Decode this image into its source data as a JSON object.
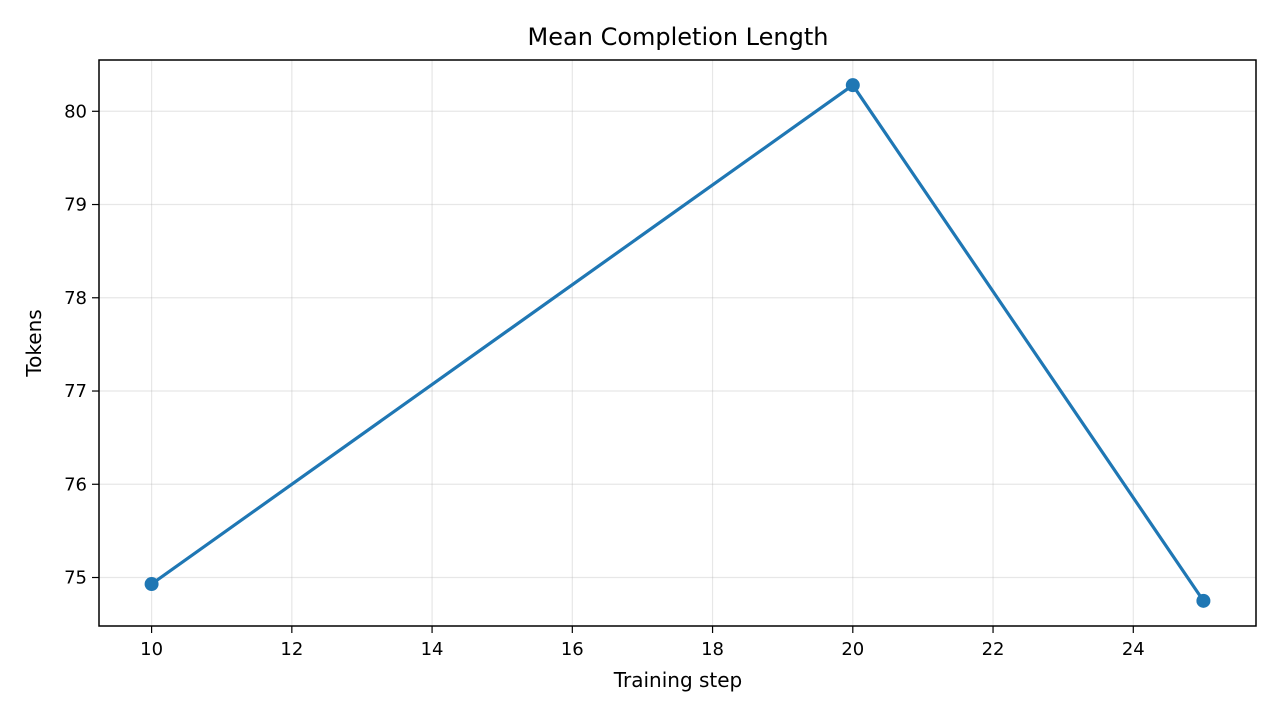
{
  "chart_data": {
    "type": "line",
    "title": "Mean Completion Length",
    "xlabel": "Training step",
    "ylabel": "Tokens",
    "xlim": [
      9.25,
      25.75
    ],
    "ylim": [
      74.48,
      80.55
    ],
    "xticks": [
      10,
      12,
      14,
      16,
      18,
      20,
      22,
      24
    ],
    "yticks": [
      75,
      76,
      77,
      78,
      79,
      80
    ],
    "grid": true,
    "series": [
      {
        "x": [
          10,
          20,
          25
        ],
        "y": [
          74.93,
          80.28,
          74.75
        ],
        "color": "#1f77b4",
        "marker": "circle"
      }
    ]
  }
}
